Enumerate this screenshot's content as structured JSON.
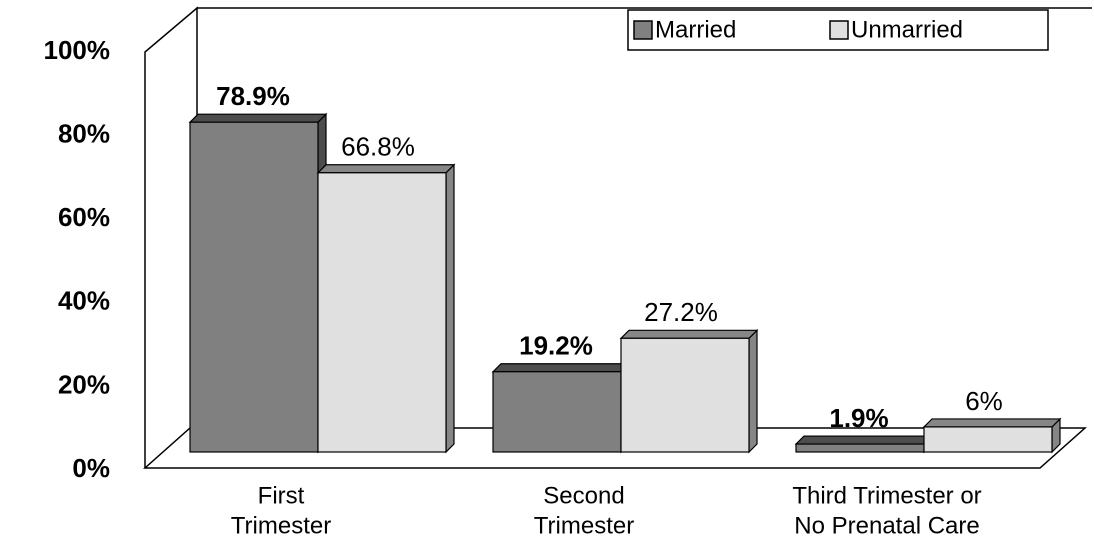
{
  "chart_data": {
    "type": "bar3d",
    "categories": [
      [
        "First",
        "Trimester"
      ],
      [
        "Second",
        "Trimester"
      ],
      [
        "Third Trimester or",
        "No Prenatal Care"
      ]
    ],
    "series": [
      {
        "name": "Married",
        "color": "#808080",
        "values": [
          78.9,
          19.2,
          1.9
        ],
        "value_labels": [
          "78.9%",
          "19.2%",
          "1.9%"
        ]
      },
      {
        "name": "Unmarried",
        "color": "#e0e0e0",
        "values": [
          66.8,
          27.2,
          6
        ],
        "value_labels": [
          "66.8%",
          "27.2%",
          "6%"
        ]
      }
    ],
    "ylim": [
      0,
      100
    ],
    "yticks": [
      {
        "value": 0,
        "label": "0%"
      },
      {
        "value": 20,
        "label": "20%"
      },
      {
        "value": 40,
        "label": "40%"
      },
      {
        "value": 60,
        "label": "60%"
      },
      {
        "value": 80,
        "label": "80%"
      },
      {
        "value": 100,
        "label": "100%"
      }
    ],
    "legend": "top-right"
  }
}
